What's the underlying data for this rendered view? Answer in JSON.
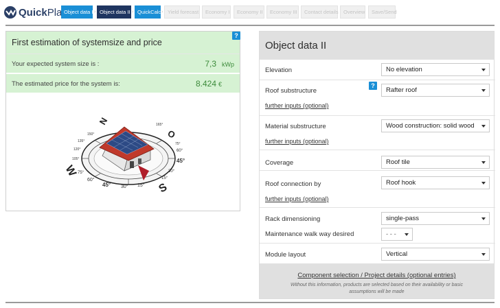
{
  "app": {
    "logo_bold": "Quick",
    "logo_light": "Plan"
  },
  "steps": [
    {
      "label": "Object data I",
      "state": "done"
    },
    {
      "label": "Object data II",
      "state": "active"
    },
    {
      "label": "QuickCalc",
      "state": "next"
    },
    {
      "label": "Yield forecast",
      "state": "disabled"
    },
    {
      "label": "Economy I",
      "state": "disabled"
    },
    {
      "label": "Economy II",
      "state": "disabled"
    },
    {
      "label": "Economy III",
      "state": "disabled"
    },
    {
      "label": "Contact details",
      "state": "disabled"
    },
    {
      "label": "Overview",
      "state": "disabled"
    },
    {
      "label": "Save/Send",
      "state": "disabled"
    }
  ],
  "estimation": {
    "title": "First estimation of systemsize and price",
    "size_label": "Your expected system size is :",
    "size_value": "7,3",
    "size_unit": "kWp",
    "price_label": "The estimated price for the system is:",
    "price_value": "8.424",
    "price_unit": "€"
  },
  "compass": {
    "directions": {
      "n": "N",
      "o": "O",
      "s": "S",
      "w": "W"
    },
    "angles": [
      "45°",
      "30°",
      "15°",
      "60°",
      "75°",
      "15°",
      "30°",
      "45°",
      "60°",
      "75°",
      "105°",
      "120°",
      "135°",
      "150°",
      "165°"
    ]
  },
  "object_data": {
    "title": "Object data II",
    "elevation": {
      "label": "Elevation",
      "value": "No elevation"
    },
    "roof_substructure": {
      "label": "Roof substructure",
      "value": "Rafter roof",
      "link": "further inputs (optional)"
    },
    "material_substructure": {
      "label": "Material substructure",
      "value": "Wood construction: solid wood",
      "link": "further inputs (optional)"
    },
    "coverage": {
      "label": "Coverage",
      "value": "Roof tile"
    },
    "roof_connection": {
      "label": "Roof connection by",
      "value": "Roof hook",
      "link": "further inputs (optional)"
    },
    "rack_dimensioning": {
      "label": "Rack dimensioning",
      "value": "single-pass"
    },
    "maintenance": {
      "label": "Maintenance walk way desired",
      "value": "- - -"
    },
    "module_layout": {
      "label": "Module layout",
      "value": "Vertical"
    },
    "component_link": "Component selection / Project details (optional entries)",
    "component_note": "Without this information, products are selected based on their availability or basic assumptions will be made"
  },
  "colors": {
    "accent_blue": "#1a8fd6",
    "active_navy": "#1f3560",
    "green_bg": "#d6f2d3",
    "green_text": "#3c8a3a",
    "roof_red": "#c0392b"
  }
}
